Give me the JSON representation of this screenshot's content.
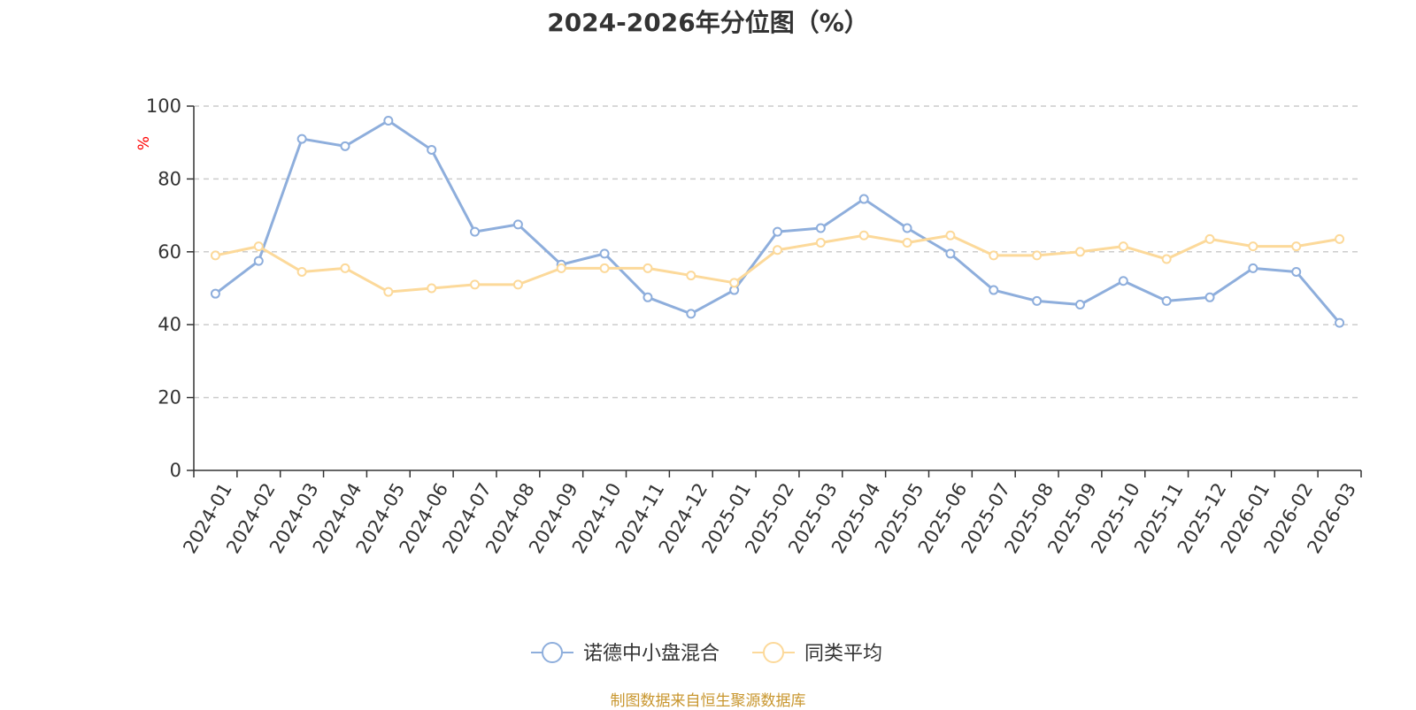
{
  "chart_data": {
    "type": "line",
    "title": "2024-2026年分位图（%）",
    "ylabel": "%",
    "xlabel": "",
    "ylim": [
      0,
      100
    ],
    "yticks": [
      0,
      20,
      40,
      60,
      80,
      100
    ],
    "grid": true,
    "legend_position": "bottom-center",
    "categories": [
      "2024-01",
      "2024-02",
      "2024-03",
      "2024-04",
      "2024-05",
      "2024-06",
      "2024-07",
      "2024-08",
      "2024-09",
      "2024-10",
      "2024-11",
      "2024-12",
      "2025-01",
      "2025-02",
      "2025-03",
      "2025-04",
      "2025-05",
      "2025-06",
      "2025-07",
      "2025-08",
      "2025-09",
      "2025-10",
      "2025-11",
      "2025-12",
      "2026-01",
      "2026-02",
      "2026-03"
    ],
    "series": [
      {
        "name": "诺德中小盘混合",
        "color": "#8eaedc",
        "values": [
          48.5,
          57.5,
          91.0,
          89.0,
          96.0,
          88.0,
          65.5,
          67.5,
          56.5,
          59.5,
          47.5,
          43.0,
          49.5,
          65.5,
          66.5,
          74.5,
          66.5,
          59.5,
          49.5,
          46.5,
          45.5,
          52.0,
          46.5,
          47.5,
          55.5,
          54.5,
          40.5
        ]
      },
      {
        "name": "同类平均",
        "color": "#fcd99a",
        "values": [
          59.0,
          61.5,
          54.5,
          55.5,
          49.0,
          50.0,
          51.0,
          51.0,
          55.5,
          55.5,
          55.5,
          53.5,
          51.5,
          60.5,
          62.5,
          64.5,
          62.5,
          64.5,
          59.0,
          59.0,
          60.0,
          61.5,
          58.0,
          63.5,
          61.5,
          61.5,
          63.5
        ]
      }
    ]
  },
  "source_note": "制图数据来自恒生聚源数据库"
}
